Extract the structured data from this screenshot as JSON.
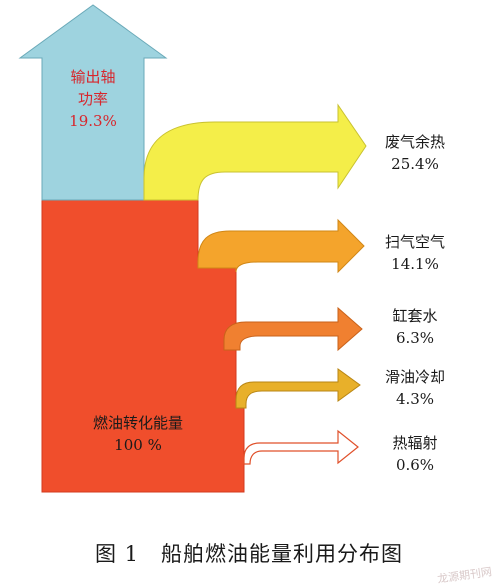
{
  "figure": {
    "caption": "图 1　船舶燃油能量利用分布图",
    "watermark": "龙源期刊网"
  },
  "input": {
    "label_line1": "燃油转化能量",
    "label_line2": "100 %",
    "value": 100,
    "color": "#f04e2c"
  },
  "shaft_output": {
    "label_line1": "输出轴",
    "label_line2": "功率",
    "label_line3": "19.3%",
    "value": 19.3,
    "color": "#9ed3df",
    "label_color": "#d8262c"
  },
  "flows": [
    {
      "id": "exhaust",
      "label": "废气余热",
      "value_text": "25.4%",
      "value": 25.4,
      "color": "#f4ee49"
    },
    {
      "id": "scavenge",
      "label": "扫气空气",
      "value_text": "14.1%",
      "value": 14.1,
      "color": "#f4a42c"
    },
    {
      "id": "jacket",
      "label": "缸套水",
      "value_text": "6.3%",
      "value": 6.3,
      "color": "#f08030"
    },
    {
      "id": "lube",
      "label": "滑油冷却",
      "value_text": "4.3%",
      "value": 4.3,
      "color": "#e8b02a"
    },
    {
      "id": "radiation",
      "label": "热辐射",
      "value_text": "0.6%",
      "value": 0.6,
      "color": "#ffffff"
    }
  ]
}
